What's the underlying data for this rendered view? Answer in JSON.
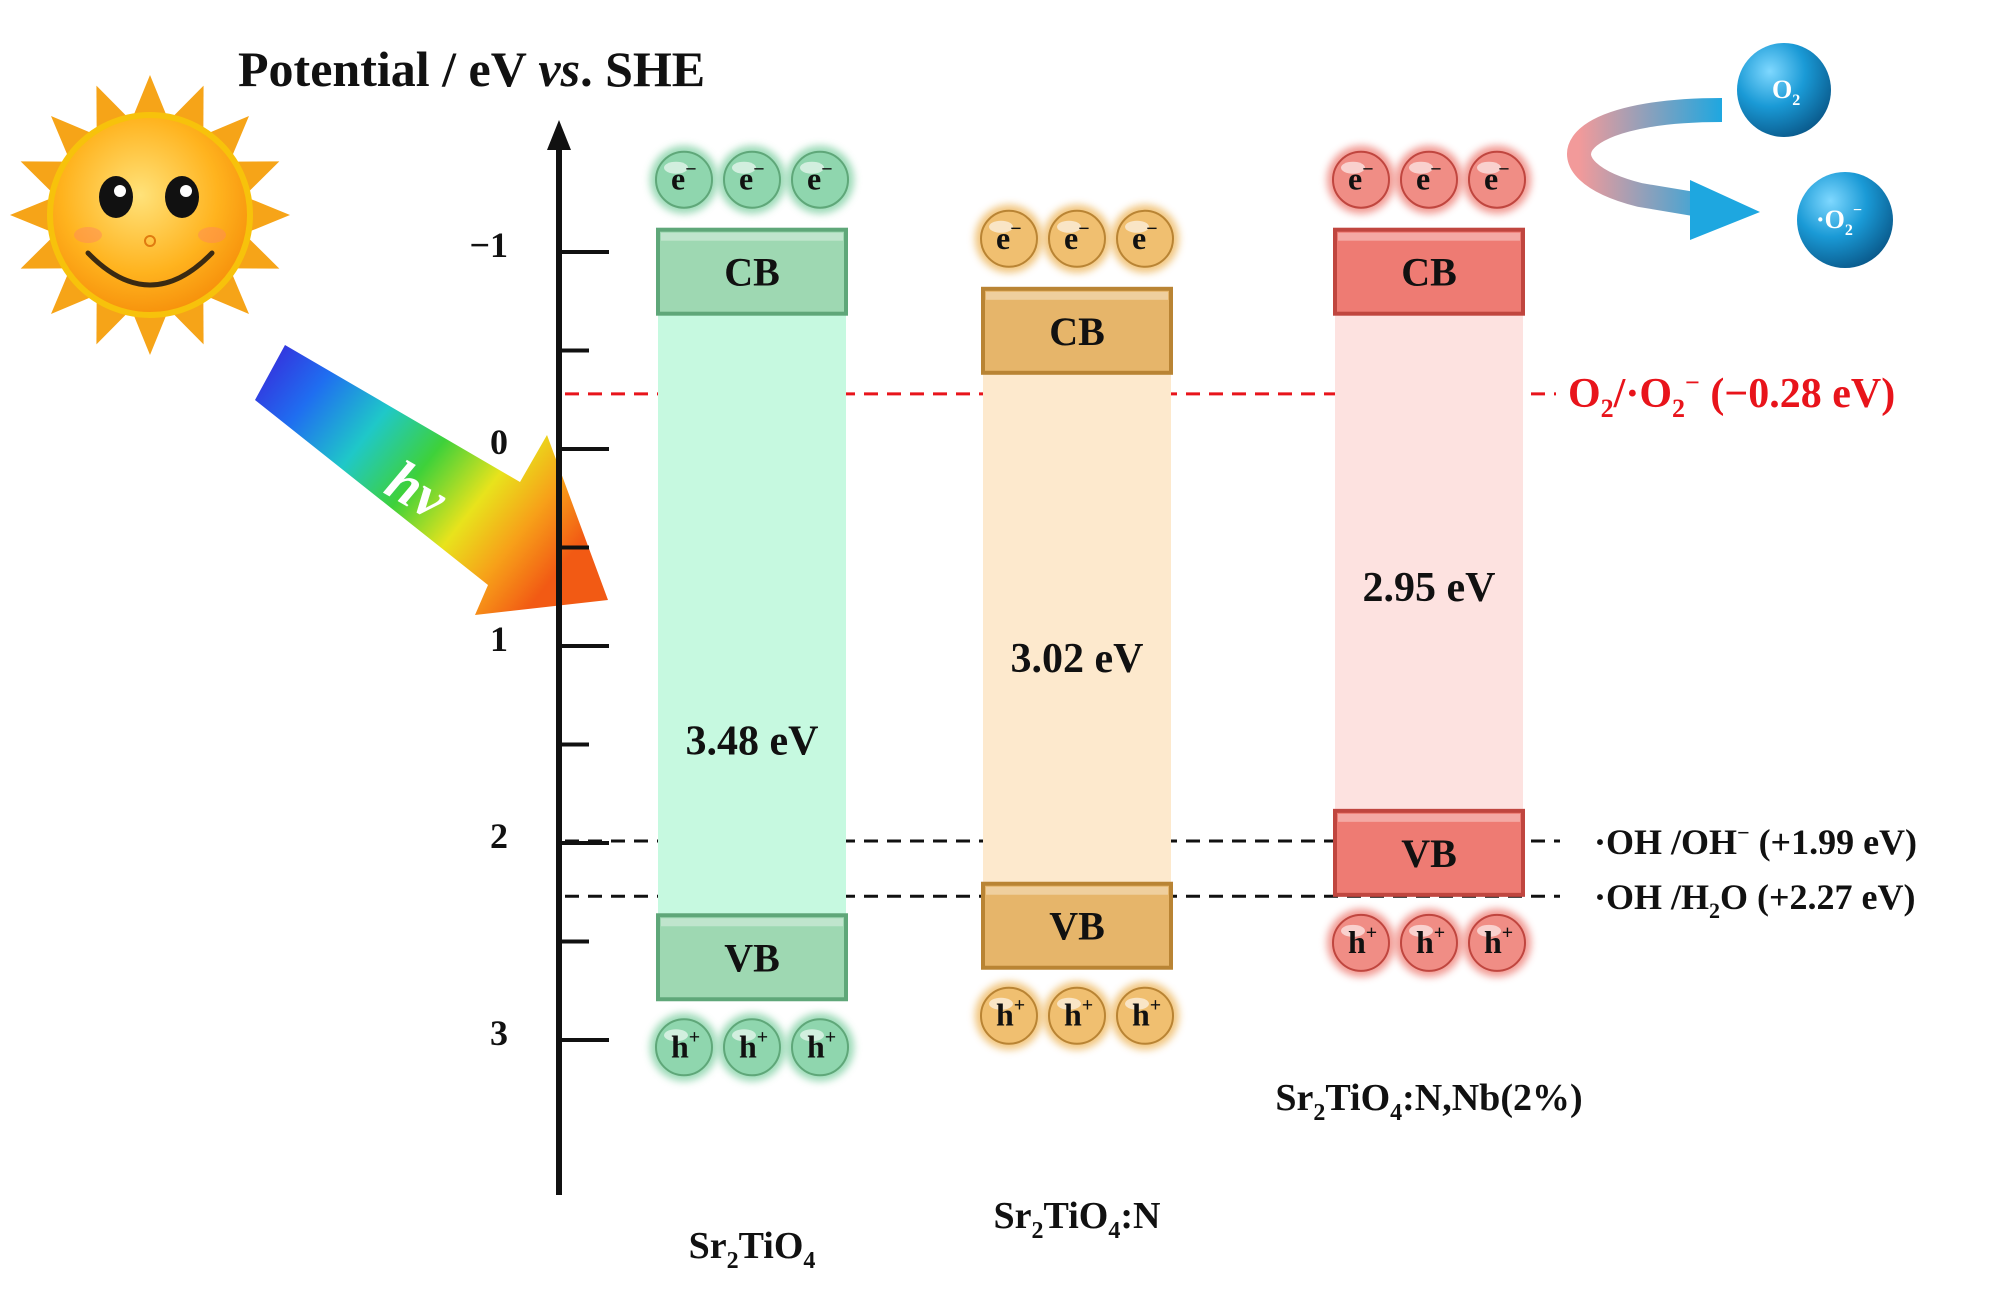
{
  "axis": {
    "title_prefix": "Potential / eV ",
    "title_italic": "vs",
    "title_suffix": ". SHE",
    "ticks": [
      {
        "value": -1,
        "label": "−1"
      },
      {
        "value": 0,
        "label": "0"
      },
      {
        "value": 1,
        "label": "1"
      },
      {
        "value": 2,
        "label": "2"
      },
      {
        "value": 3,
        "label": "3"
      }
    ],
    "minor_ticks": [
      -0.5,
      0.5,
      1.5,
      2.5
    ]
  },
  "light": {
    "label": "hν"
  },
  "materials": [
    {
      "name_parts": [
        "Sr",
        "2",
        "TiO",
        "4",
        ""
      ],
      "cb_label": "CB",
      "vb_label": "VB",
      "cb_potential": -0.9,
      "vb_potential": 2.58,
      "gap_label": "3.48 eV",
      "gap_potential": 1.48,
      "electron_label": "e",
      "electron_sup": "−",
      "hole_label": "h",
      "hole_sup": "+",
      "colors": {
        "band": "#9ed8b2",
        "band_dark": "#5fa779",
        "gap": "#c6f9e0",
        "particle": "#8fd6ae"
      }
    },
    {
      "name_parts": [
        "Sr",
        "2",
        "TiO",
        "4",
        ":N"
      ],
      "cb_label": "CB",
      "vb_label": "VB",
      "cb_potential": -0.6,
      "vb_potential": 2.42,
      "gap_label": "3.02 eV",
      "gap_potential": 1.06,
      "electron_label": "e",
      "electron_sup": "−",
      "hole_label": "h",
      "hole_sup": "+",
      "colors": {
        "band": "#e6b56a",
        "band_dark": "#b98434",
        "gap": "#fde9cd",
        "particle": "#f0bf70"
      }
    },
    {
      "name_parts": [
        "Sr",
        "2",
        "TiO",
        "4",
        ":N,Nb(2%)"
      ],
      "cb_label": "CB",
      "vb_label": "VB",
      "cb_potential": -0.9,
      "vb_potential": 2.05,
      "gap_label": "2.95 eV",
      "gap_potential": 0.7,
      "electron_label": "e",
      "electron_sup": "−",
      "hole_label": "h",
      "hole_sup": "+",
      "colors": {
        "band": "#ee7b73",
        "band_dark": "#c0463f",
        "gap": "#fde2e0",
        "particle": "#f08d85"
      }
    }
  ],
  "reference_lines": [
    {
      "potential": -0.28,
      "label_html": "O<sub>2</sub>/·O<sub>2</sub><sup>−</sup> (−0.28 eV)",
      "parts": [
        "O",
        "2",
        "/·O",
        "2",
        "−",
        " (−0.28 eV)"
      ],
      "color": "#e8141b"
    },
    {
      "potential": 1.99,
      "parts": [
        "·OH /OH",
        "−",
        " (+1.99 eV)"
      ],
      "color": "#111111"
    },
    {
      "potential": 2.27,
      "parts": [
        "·OH /H",
        "2",
        "O (+2.27 eV)"
      ],
      "color": "#111111"
    }
  ],
  "reaction": {
    "reactant": [
      "O",
      "2"
    ],
    "product": [
      "·O",
      "2",
      "−"
    ],
    "colors": {
      "sphere": "#1a9ad6",
      "arrow_start": "#f08c8c",
      "arrow_end": "#1ea7e0"
    }
  }
}
